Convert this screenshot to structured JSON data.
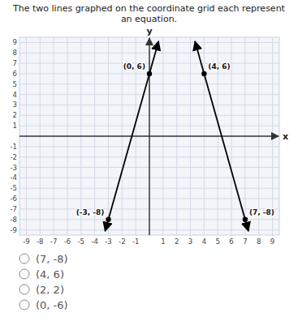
{
  "chart_data": {
    "type": "line",
    "title": "The two lines graphed on the coordinate grid each represent an equation.",
    "x_label": "x",
    "y_label": "y",
    "xlim": [
      -9.5,
      9.5
    ],
    "ylim": [
      -9.5,
      9.5
    ],
    "xticks": [
      -9,
      -8,
      -7,
      -6,
      -5,
      -4,
      -3,
      -2,
      -1,
      1,
      2,
      3,
      4,
      5,
      6,
      7,
      8,
      9
    ],
    "yticks": [
      -9,
      -8,
      -7,
      -6,
      -5,
      -4,
      -3,
      -2,
      -1,
      1,
      2,
      3,
      4,
      5,
      6,
      7,
      8,
      9
    ],
    "grid": true,
    "marker": "circle",
    "series": [
      {
        "x": [
          -3,
          0
        ],
        "values": [
          -8,
          6
        ],
        "value_labels": [
          "(-3, -8)",
          "(0, 6)"
        ],
        "color": "#000000"
      },
      {
        "x": [
          4,
          7
        ],
        "values": [
          6,
          -8
        ],
        "value_labels": [
          "(4, 6)",
          "(7, -8)"
        ],
        "color": "#000000"
      }
    ],
    "annotations": [
      "(7, -8)",
      "(4, 6)",
      "(2, 2)",
      "(0, -6)"
    ]
  }
}
